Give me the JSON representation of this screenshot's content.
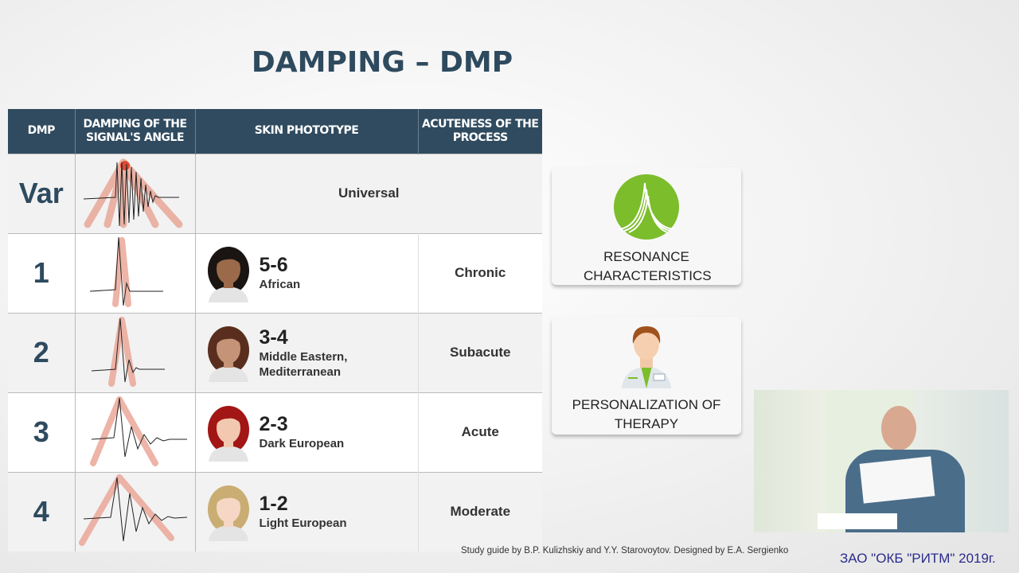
{
  "title": "DAMPING – DMP",
  "table": {
    "headers": [
      "DMP",
      "DAMPING OF THE SIGNAL'S ANGLE",
      "SKIN PHOTOTYPE",
      "ACUTENESS OF THE PROCESS"
    ],
    "rows": [
      {
        "dmp": "Var",
        "skin": "Universal"
      },
      {
        "dmp": "1",
        "phototype": "5-6",
        "ethnicity": "African",
        "acuteness": "Chronic",
        "hair": "#1a1512",
        "skin_color": "#9a6a4a"
      },
      {
        "dmp": "2",
        "phototype": "3-4",
        "ethnicity": "Middle Eastern, Mediterranean",
        "acuteness": "Subacute",
        "hair": "#5a2e1e",
        "skin_color": "#c59478"
      },
      {
        "dmp": "3",
        "phototype": "2-3",
        "ethnicity": "Dark European",
        "acuteness": "Acute",
        "hair": "#a21616",
        "skin_color": "#f2c9b0"
      },
      {
        "dmp": "4",
        "phototype": "1-2",
        "ethnicity": "Light European",
        "acuteness": "Moderate",
        "hair": "#c9ad72",
        "skin_color": "#f6d6c4"
      }
    ]
  },
  "cards": [
    {
      "label": "RESONANCE CHARACTERISTICS",
      "icon": "resonance-icon",
      "color": "#7cbd2b"
    },
    {
      "label": "PERSONALIZATION OF THERAPY",
      "icon": "doctor-icon"
    }
  ],
  "credit": "Study guide by B.P. Kulizhskiy and Y.Y. Starovoytov. Designed by E.A. Sergienko",
  "corp": "ЗАО \"ОКБ \"РИТМ\"  2019г."
}
